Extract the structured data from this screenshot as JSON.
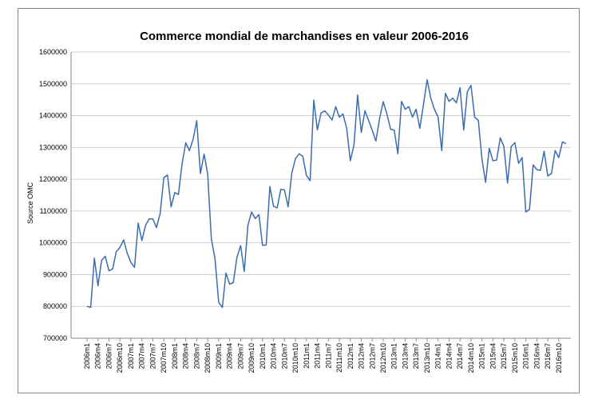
{
  "chart_data": {
    "type": "line",
    "title": "Commerce mondial de marchandises en valeur 2006-2016",
    "ylabel": "Source OMC",
    "xlabel": "",
    "ylim": [
      700000,
      1600000
    ],
    "yticks": [
      700000,
      800000,
      900000,
      1000000,
      1100000,
      1200000,
      1300000,
      1400000,
      1500000,
      1600000
    ],
    "ytick_labels": [
      "700000",
      "800000",
      "900000",
      "1000000",
      "1100000",
      "1200000",
      "1300000",
      "1400000",
      "1500000",
      "1600000"
    ],
    "xtick_labels": [
      "2006m1",
      "2006m4",
      "2006m7",
      "2006m10",
      "2007m1",
      "2007m4",
      "2007m7",
      "2007m10",
      "2008m1",
      "2008m4",
      "2008m7",
      "2008m10",
      "2009m1",
      "2009m4",
      "2009m7",
      "2009m10",
      "2010m1",
      "2010m4",
      "2010m7",
      "2010m10",
      "2011m1",
      "2011m4",
      "2011m7",
      "2011m10",
      "2012m1",
      "2012m4",
      "2012m7",
      "2012m10",
      "2013m1",
      "2013m4",
      "2013m7",
      "2013m10",
      "2014m1",
      "2014m4",
      "2014m7",
      "2014m10",
      "2015m1",
      "2015m4",
      "2015m7",
      "2015m10",
      "2016m1",
      "2016m4",
      "2016m7",
      "2016m10"
    ],
    "grid": true,
    "legend": "none",
    "line_color": "#3b6dac",
    "series": [
      {
        "values": [
          800000,
          797000,
          952000,
          865000,
          945000,
          958000,
          912000,
          918000,
          972000,
          985000,
          1009000,
          967000,
          938000,
          923000,
          1062000,
          1007000,
          1055000,
          1075000,
          1075000,
          1048000,
          1092000,
          1205000,
          1213000,
          1113000,
          1158000,
          1152000,
          1249000,
          1315000,
          1290000,
          1325000,
          1384000,
          1218000,
          1279000,
          1217000,
          1013000,
          950000,
          813000,
          797000,
          905000,
          870000,
          875000,
          955000,
          991000,
          910000,
          1055000,
          1097000,
          1076000,
          1089000,
          992000,
          993000,
          1177000,
          1115000,
          1110000,
          1168000,
          1166000,
          1113000,
          1220000,
          1265000,
          1280000,
          1272000,
          1212000,
          1195000,
          1449000,
          1355000,
          1408000,
          1415000,
          1402000,
          1386000,
          1428000,
          1395000,
          1405000,
          1360000,
          1258000,
          1308000,
          1465000,
          1347000,
          1415000,
          1385000,
          1353000,
          1320000,
          1390000,
          1444000,
          1405000,
          1357000,
          1355000,
          1280000,
          1445000,
          1420000,
          1428000,
          1395000,
          1420000,
          1360000,
          1435000,
          1513000,
          1455000,
          1420000,
          1395000,
          1290000,
          1470000,
          1445000,
          1455000,
          1440000,
          1488000,
          1355000,
          1475000,
          1495000,
          1395000,
          1385000,
          1262000,
          1190000,
          1297000,
          1258000,
          1260000,
          1330000,
          1303000,
          1188000,
          1303000,
          1315000,
          1250000,
          1268000,
          1097000,
          1105000,
          1245000,
          1230000,
          1228000,
          1288000,
          1210000,
          1218000,
          1290000,
          1268000,
          1317000,
          1312000
        ]
      }
    ]
  }
}
